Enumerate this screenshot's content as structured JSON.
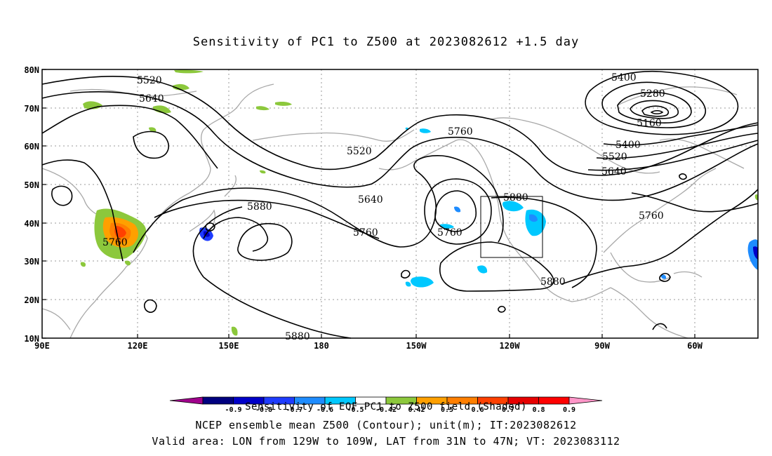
{
  "title": "Sensitivity of PC1 to Z500 at 2023082612 +1.5 day",
  "lat_labels": [
    "80N",
    "70N",
    "60N",
    "50N",
    "40N",
    "30N",
    "20N",
    "10N"
  ],
  "lon_labels": [
    "90E",
    "120E",
    "150E",
    "180",
    "150W",
    "120W",
    "90W",
    "60W"
  ],
  "contour_labels": [
    {
      "text": "5520"
    },
    {
      "text": "5640"
    },
    {
      "text": "5520"
    },
    {
      "text": "5640"
    },
    {
      "text": "5760"
    },
    {
      "text": "5760"
    },
    {
      "text": "5760"
    },
    {
      "text": "5880"
    },
    {
      "text": "5880"
    },
    {
      "text": "5880"
    },
    {
      "text": "5880"
    },
    {
      "text": "5760"
    },
    {
      "text": "5400"
    },
    {
      "text": "5280"
    },
    {
      "text": "5160"
    },
    {
      "text": "5400"
    },
    {
      "text": "5520"
    },
    {
      "text": "5640"
    },
    {
      "text": "5760"
    }
  ],
  "colorbar": {
    "colors": [
      "#a0008c",
      "#00007f",
      "#0000c8",
      "#1e3cff",
      "#1e8cff",
      "#00c8ff",
      "#ffffff",
      "#8cc83c",
      "#ffa000",
      "#ff7f00",
      "#ff4000",
      "#e60000",
      "#ff0000",
      "#ff96c8"
    ],
    "labels": [
      "-0.9",
      "-0.8",
      "-0.7",
      "-0.6",
      "-0.5",
      "-0.42",
      "0.42",
      "0.5",
      "0.6",
      "0.7",
      "0.8",
      "0.9"
    ]
  },
  "footer": {
    "line1": "Sensitivity of EOF PC1 to Z500 field (Shaded)",
    "line2": "NCEP ensemble mean Z500 (Contour); unit(m); IT:2023082612",
    "line3": "Valid area: LON from 129W to 109W, LAT from 31N to 47N; VT: 2023083112"
  },
  "valid_area": {
    "lon_min": "129W",
    "lon_max": "109W",
    "lat_min": "31N",
    "lat_max": "47N"
  }
}
